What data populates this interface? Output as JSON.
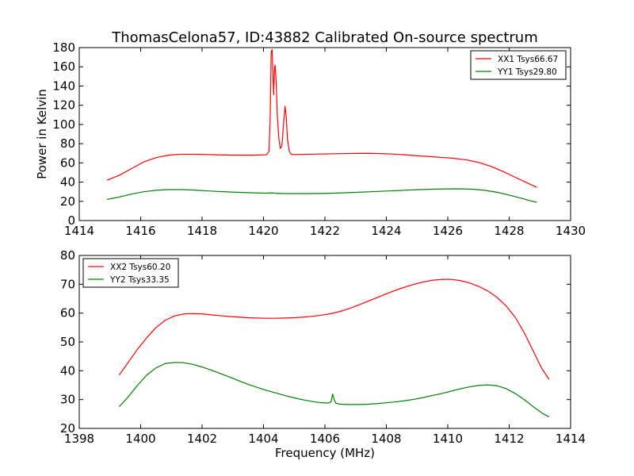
{
  "title": "ThomasCelona57, ID:43882 Calibrated On-source spectrum",
  "colors": {
    "red": "#ff0000",
    "green": "#008000"
  },
  "chart_data": [
    {
      "type": "line",
      "ylabel": "Power in Kelvin",
      "xlabel": "",
      "xlim": [
        1414,
        1430
      ],
      "ylim": [
        0,
        180
      ],
      "xticks": [
        1414,
        1416,
        1418,
        1420,
        1422,
        1424,
        1426,
        1428,
        1430
      ],
      "yticks": [
        0,
        20,
        40,
        60,
        80,
        100,
        120,
        140,
        160,
        180
      ],
      "legend_position": "top-right",
      "series": [
        {
          "name": "XX1 Tsys66.67",
          "color": "#ff0000",
          "points": [
            [
              1414.9,
              42
            ],
            [
              1415.3,
              47
            ],
            [
              1415.7,
              54
            ],
            [
              1416.1,
              61
            ],
            [
              1416.5,
              65.5
            ],
            [
              1416.9,
              68
            ],
            [
              1417.3,
              69
            ],
            [
              1417.7,
              69
            ],
            [
              1418.1,
              68.8
            ],
            [
              1418.5,
              68.3
            ],
            [
              1418.9,
              68.1
            ],
            [
              1419.3,
              68
            ],
            [
              1419.7,
              68
            ],
            [
              1420.1,
              68.5
            ],
            [
              1420.18,
              72
            ],
            [
              1420.22,
              110
            ],
            [
              1420.25,
              175
            ],
            [
              1420.28,
              178
            ],
            [
              1420.31,
              150
            ],
            [
              1420.33,
              131
            ],
            [
              1420.36,
              158
            ],
            [
              1420.38,
              162
            ],
            [
              1420.41,
              145
            ],
            [
              1420.45,
              110
            ],
            [
              1420.5,
              85
            ],
            [
              1420.55,
              75
            ],
            [
              1420.6,
              78
            ],
            [
              1420.65,
              100
            ],
            [
              1420.7,
              119
            ],
            [
              1420.74,
              108
            ],
            [
              1420.78,
              85
            ],
            [
              1420.84,
              72
            ],
            [
              1420.9,
              69
            ],
            [
              1421.0,
              68.7
            ],
            [
              1421.5,
              69
            ],
            [
              1422.0,
              69.3
            ],
            [
              1422.5,
              69.6
            ],
            [
              1423.0,
              69.9
            ],
            [
              1423.4,
              70
            ],
            [
              1423.8,
              69.7
            ],
            [
              1424.2,
              69.2
            ],
            [
              1424.6,
              68.4
            ],
            [
              1425.0,
              67.5
            ],
            [
              1425.4,
              66.6
            ],
            [
              1425.8,
              65.7
            ],
            [
              1426.2,
              64.7
            ],
            [
              1426.6,
              63.2
            ],
            [
              1427.0,
              60.5
            ],
            [
              1427.4,
              56.5
            ],
            [
              1427.8,
              51
            ],
            [
              1428.2,
              45
            ],
            [
              1428.6,
              39
            ],
            [
              1428.9,
              34.5
            ]
          ]
        },
        {
          "name": "YY1 Tsys29.80",
          "color": "#008000",
          "points": [
            [
              1414.9,
              22
            ],
            [
              1415.3,
              24.5
            ],
            [
              1415.7,
              27.5
            ],
            [
              1416.1,
              30
            ],
            [
              1416.5,
              31.5
            ],
            [
              1416.9,
              32.2
            ],
            [
              1417.3,
              32.2
            ],
            [
              1417.7,
              31.8
            ],
            [
              1418.1,
              31
            ],
            [
              1418.5,
              30.3
            ],
            [
              1418.9,
              29.7
            ],
            [
              1419.3,
              29.2
            ],
            [
              1419.7,
              28.8
            ],
            [
              1420.1,
              28.5
            ],
            [
              1420.25,
              28.8
            ],
            [
              1420.4,
              28.4
            ],
            [
              1420.6,
              28.2
            ],
            [
              1421.0,
              28.1
            ],
            [
              1421.5,
              28.1
            ],
            [
              1422.0,
              28.3
            ],
            [
              1422.5,
              28.7
            ],
            [
              1423.0,
              29.3
            ],
            [
              1423.5,
              30
            ],
            [
              1424.0,
              30.7
            ],
            [
              1424.5,
              31.4
            ],
            [
              1425.0,
              32.1
            ],
            [
              1425.5,
              32.6
            ],
            [
              1426.0,
              32.9
            ],
            [
              1426.4,
              33
            ],
            [
              1426.8,
              32.6
            ],
            [
              1427.2,
              31.5
            ],
            [
              1427.6,
              29.5
            ],
            [
              1428.0,
              26.5
            ],
            [
              1428.4,
              23.2
            ],
            [
              1428.7,
              20.5
            ],
            [
              1428.9,
              19
            ]
          ]
        }
      ]
    },
    {
      "type": "line",
      "ylabel": "",
      "xlabel": "Frequency (MHz)",
      "xlim": [
        1398,
        1414
      ],
      "ylim": [
        20,
        80
      ],
      "xticks": [
        1398,
        1400,
        1402,
        1404,
        1406,
        1408,
        1410,
        1412,
        1414
      ],
      "yticks": [
        20,
        30,
        40,
        50,
        60,
        70,
        80
      ],
      "legend_position": "top-left",
      "series": [
        {
          "name": "XX2 Tsys60.20",
          "color": "#ff0000",
          "points": [
            [
              1399.3,
              38.5
            ],
            [
              1399.6,
              43
            ],
            [
              1399.9,
              47.5
            ],
            [
              1400.2,
              51.5
            ],
            [
              1400.5,
              55
            ],
            [
              1400.8,
              57.5
            ],
            [
              1401.1,
              59
            ],
            [
              1401.4,
              59.7
            ],
            [
              1401.7,
              59.8
            ],
            [
              1402.0,
              59.7
            ],
            [
              1402.3,
              59.4
            ],
            [
              1402.6,
              59.1
            ],
            [
              1402.9,
              58.8
            ],
            [
              1403.2,
              58.6
            ],
            [
              1403.5,
              58.4
            ],
            [
              1403.8,
              58.3
            ],
            [
              1404.1,
              58.2
            ],
            [
              1404.4,
              58.2
            ],
            [
              1404.7,
              58.3
            ],
            [
              1405.0,
              58.4
            ],
            [
              1405.3,
              58.6
            ],
            [
              1405.6,
              58.9
            ],
            [
              1405.9,
              59.3
            ],
            [
              1406.2,
              59.8
            ],
            [
              1406.5,
              60.6
            ],
            [
              1406.8,
              61.6
            ],
            [
              1407.1,
              62.8
            ],
            [
              1407.4,
              64.1
            ],
            [
              1407.7,
              65.4
            ],
            [
              1408.0,
              66.7
            ],
            [
              1408.3,
              67.9
            ],
            [
              1408.6,
              69
            ],
            [
              1408.9,
              70
            ],
            [
              1409.2,
              70.8
            ],
            [
              1409.5,
              71.4
            ],
            [
              1409.8,
              71.7
            ],
            [
              1410.1,
              71.7
            ],
            [
              1410.4,
              71.3
            ],
            [
              1410.7,
              70.5
            ],
            [
              1411.0,
              69.3
            ],
            [
              1411.3,
              67.7
            ],
            [
              1411.6,
              65.5
            ],
            [
              1411.9,
              62.5
            ],
            [
              1412.2,
              58.5
            ],
            [
              1412.5,
              53
            ],
            [
              1412.8,
              46.5
            ],
            [
              1413.05,
              41
            ],
            [
              1413.3,
              37
            ]
          ]
        },
        {
          "name": "YY2 Tsys33.35",
          "color": "#008000",
          "points": [
            [
              1399.3,
              27.5
            ],
            [
              1399.6,
              31
            ],
            [
              1399.9,
              35
            ],
            [
              1400.2,
              38.5
            ],
            [
              1400.5,
              41
            ],
            [
              1400.8,
              42.5
            ],
            [
              1401.1,
              42.9
            ],
            [
              1401.4,
              42.8
            ],
            [
              1401.7,
              42.2
            ],
            [
              1402.0,
              41.3
            ],
            [
              1402.3,
              40.2
            ],
            [
              1402.6,
              39
            ],
            [
              1402.9,
              37.8
            ],
            [
              1403.2,
              36.5
            ],
            [
              1403.5,
              35.3
            ],
            [
              1403.8,
              34.2
            ],
            [
              1404.1,
              33.2
            ],
            [
              1404.4,
              32.3
            ],
            [
              1404.7,
              31.4
            ],
            [
              1405.0,
              30.6
            ],
            [
              1405.3,
              29.9
            ],
            [
              1405.6,
              29.3
            ],
            [
              1405.9,
              28.9
            ],
            [
              1406.1,
              28.8
            ],
            [
              1406.2,
              29.2
            ],
            [
              1406.25,
              31.9
            ],
            [
              1406.3,
              30
            ],
            [
              1406.36,
              28.7
            ],
            [
              1406.5,
              28.4
            ],
            [
              1406.8,
              28.3
            ],
            [
              1407.1,
              28.3
            ],
            [
              1407.4,
              28.4
            ],
            [
              1407.7,
              28.6
            ],
            [
              1408.0,
              28.9
            ],
            [
              1408.3,
              29.2
            ],
            [
              1408.6,
              29.6
            ],
            [
              1408.9,
              30.1
            ],
            [
              1409.2,
              30.7
            ],
            [
              1409.5,
              31.4
            ],
            [
              1409.8,
              32.1
            ],
            [
              1410.1,
              32.9
            ],
            [
              1410.4,
              33.7
            ],
            [
              1410.7,
              34.4
            ],
            [
              1411.0,
              34.9
            ],
            [
              1411.3,
              35.1
            ],
            [
              1411.6,
              34.8
            ],
            [
              1411.9,
              33.8
            ],
            [
              1412.2,
              32.1
            ],
            [
              1412.5,
              29.9
            ],
            [
              1412.8,
              27.4
            ],
            [
              1413.1,
              25.1
            ],
            [
              1413.3,
              24
            ]
          ]
        }
      ]
    }
  ]
}
